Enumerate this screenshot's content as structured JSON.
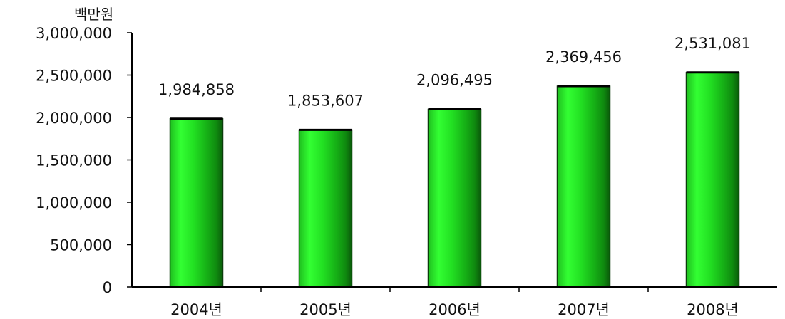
{
  "chart_data": {
    "type": "bar",
    "title": "",
    "xlabel": "",
    "ylabel": "백만원",
    "categories": [
      "2004년",
      "2005년",
      "2006년",
      "2007년",
      "2008년"
    ],
    "values": [
      1984858,
      1853607,
      2096495,
      2369456,
      2531081
    ],
    "data_labels": [
      "1,984,858",
      "1,853,607",
      "2,096,495",
      "2,369,456",
      "2,531,081"
    ],
    "ylim": [
      0,
      3000000
    ],
    "yticks": [
      0,
      500000,
      1000000,
      1500000,
      2000000,
      2500000,
      3000000
    ],
    "ytick_labels": [
      "0",
      "500,000",
      "1,000,000",
      "1,500,000",
      "2,000,000",
      "2,500,000",
      "3,000,000"
    ],
    "grid": false,
    "legend": "none",
    "colors": {
      "bar_light": "#33ff33",
      "bar_mid": "#1fcf1f",
      "bar_dark": "#0f7a0f",
      "bar_outline": "#0b3d0b",
      "axis": "#000000"
    }
  }
}
